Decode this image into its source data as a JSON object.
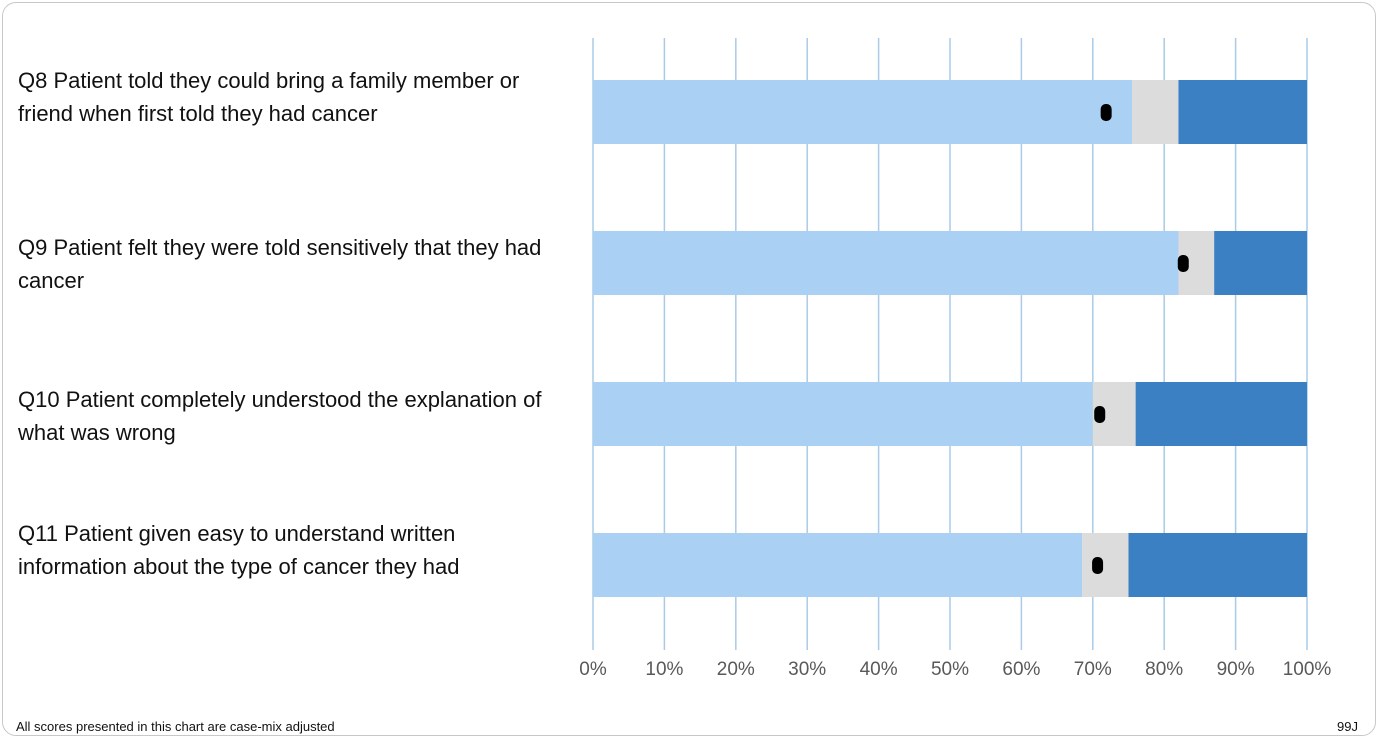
{
  "chart_data": {
    "type": "bar",
    "orientation": "horizontal",
    "stacked": true,
    "categories": [
      "Q8 Patient told they could bring a family member or friend when first told they had cancer",
      "Q9 Patient felt they were told sensitively that they had cancer",
      "Q10 Patient completely understood the explanation of what was wrong",
      "Q11 Patient given easy to understand written information about the type of cancer they had"
    ],
    "series": [
      {
        "values": [
          75.5,
          82,
          70,
          68.5
        ],
        "color": "#aad0f4"
      },
      {
        "values": [
          6.5,
          5,
          6,
          6.5
        ],
        "color": "#dcdcdc"
      },
      {
        "values": [
          18,
          13,
          24,
          25
        ],
        "color": "#3a80c3"
      }
    ],
    "markers": {
      "values": [
        71.8,
        82.6,
        70.9,
        70.6
      ],
      "color": "#000000"
    },
    "xlim": [
      0,
      100
    ],
    "xticks": [
      "0%",
      "10%",
      "20%",
      "30%",
      "40%",
      "50%",
      "60%",
      "70%",
      "80%",
      "90%",
      "100%"
    ],
    "grid": true,
    "grid_color": "#a9cbe8"
  },
  "footnote": "All scores presented in this chart are case-mix adjusted",
  "code": "99J"
}
